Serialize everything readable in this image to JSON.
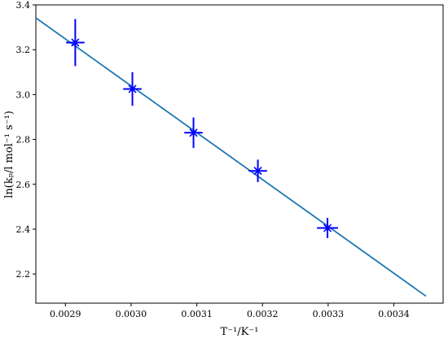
{
  "chart_data": {
    "type": "scatter",
    "title": "",
    "xlabel": "T⁻¹/K⁻¹",
    "ylabel": "ln(kₚ/l mol⁻¹ s⁻¹)",
    "xlim": [
      0.002855,
      0.003475
    ],
    "ylim": [
      2.07,
      3.4
    ],
    "xticks": [
      "0.0029",
      "0.0030",
      "0.0031",
      "0.0032",
      "0.0033",
      "0.0034"
    ],
    "xtick_values": [
      0.0029,
      0.003,
      0.0031,
      0.0032,
      0.0033,
      0.0034
    ],
    "yticks": [
      "2.2",
      "2.4",
      "2.6",
      "2.8",
      "3.0",
      "3.2",
      "3.4"
    ],
    "ytick_values": [
      2.2,
      2.4,
      2.6,
      2.8,
      3.0,
      3.2,
      3.4
    ],
    "grid": false,
    "series": [
      {
        "type": "scatter",
        "marker": "x",
        "color": "#0000ff",
        "x": [
          0.002915,
          0.003002,
          0.003095,
          0.003193,
          0.003299
        ],
        "y": [
          3.232,
          3.025,
          2.83,
          2.66,
          2.405
        ],
        "x_err": [
          1.4e-05,
          1.4e-05,
          1.4e-05,
          1.4e-05,
          1.6e-05
        ],
        "y_err": [
          0.105,
          0.075,
          0.068,
          0.05,
          0.045
        ]
      },
      {
        "type": "line",
        "color": "#1f77b4",
        "x": [
          0.002855,
          0.003449
        ],
        "y": [
          3.342,
          2.101
        ]
      }
    ]
  }
}
